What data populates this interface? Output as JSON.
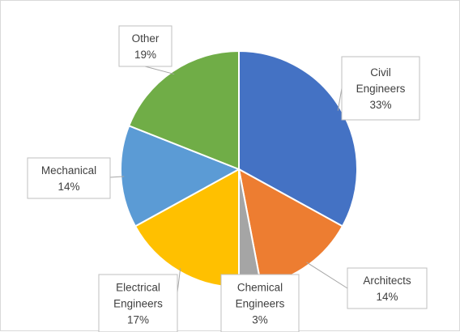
{
  "chart_data": {
    "type": "pie",
    "title": "",
    "slices": [
      {
        "label": "Civil Engineers",
        "value": 33,
        "percent_label": "33%",
        "color": "#4472C4"
      },
      {
        "label": "Architects",
        "value": 14,
        "percent_label": "14%",
        "color": "#ED7D31"
      },
      {
        "label": "Chemical Engineers",
        "value": 3,
        "percent_label": "3%",
        "color": "#A5A5A5"
      },
      {
        "label": "Electrical Engineers",
        "value": 17,
        "percent_label": "17%",
        "color": "#FFC000"
      },
      {
        "label": "Mechanical",
        "value": 14,
        "percent_label": "14%",
        "color": "#5B9BD5"
      },
      {
        "label": "Other",
        "value": 19,
        "percent_label": "19%",
        "color": "#70AD47"
      }
    ],
    "legend": "none",
    "data_labels": "callouts with category name and percentage"
  }
}
